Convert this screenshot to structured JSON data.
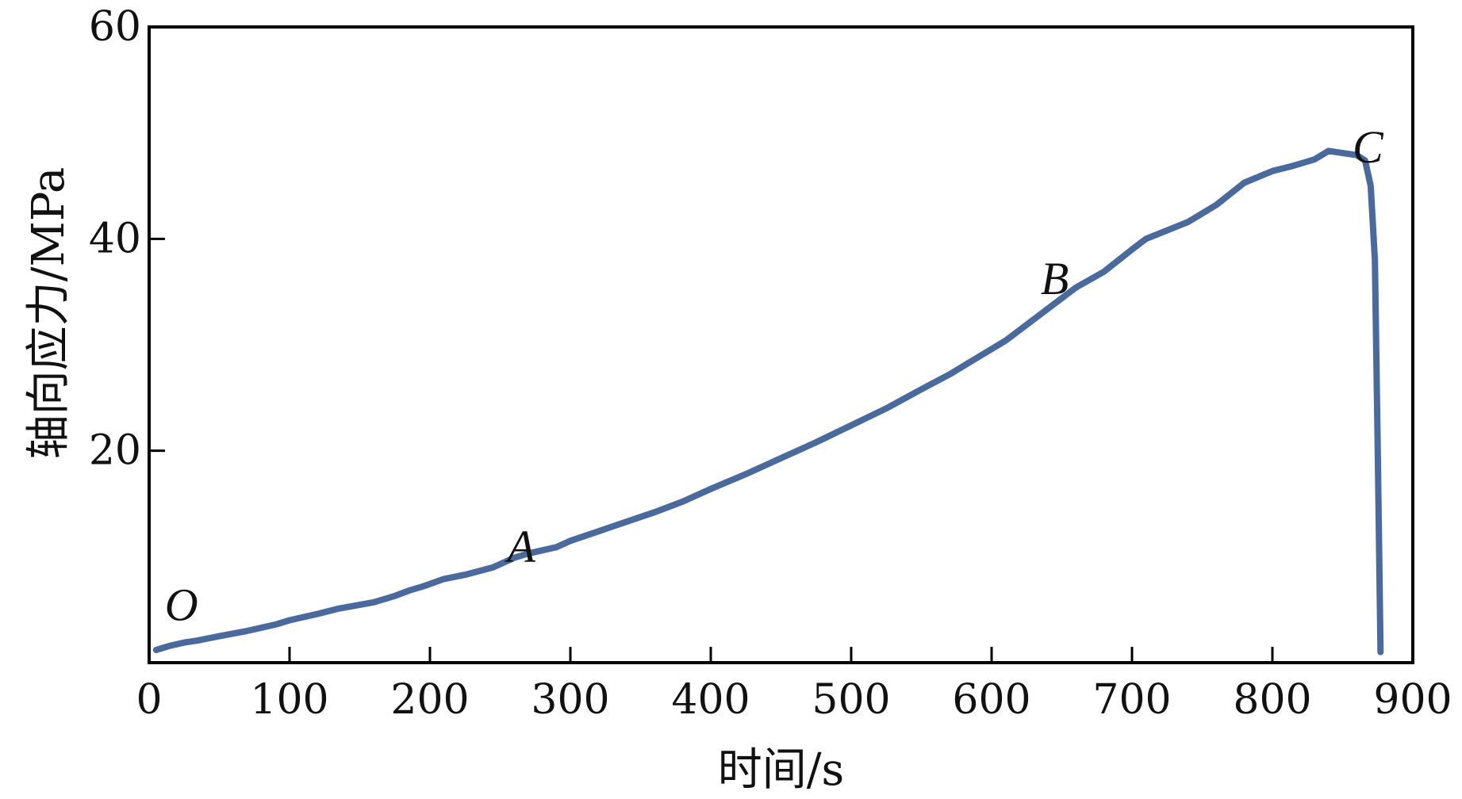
{
  "chart_data": {
    "type": "line",
    "title": "",
    "xlabel": "时间/s",
    "ylabel": "轴向应力/MPa",
    "xlim": [
      0,
      900
    ],
    "ylim": [
      0,
      60
    ],
    "xticks": [
      0,
      100,
      200,
      300,
      400,
      500,
      600,
      700,
      800,
      900
    ],
    "yticks": [
      20,
      40,
      60
    ],
    "xtick_labels": [
      "0",
      "100",
      "200",
      "300",
      "400",
      "500",
      "600",
      "700",
      "800",
      "900"
    ],
    "ytick_labels": [
      "20",
      "40",
      "60"
    ],
    "grid": false,
    "line_color": "#4a6a9e",
    "series": [
      {
        "x": [
          5,
          15,
          25,
          35,
          50,
          70,
          90,
          100,
          120,
          135,
          160,
          175,
          185,
          195,
          210,
          225,
          245,
          260,
          270,
          290,
          300,
          320,
          340,
          360,
          380,
          400,
          425,
          450,
          475,
          500,
          525,
          550,
          570,
          590,
          610,
          640,
          660,
          680,
          700,
          710,
          740,
          760,
          780,
          800,
          815,
          830,
          840,
          850,
          860,
          866,
          870,
          873,
          875,
          877
        ],
        "y": [
          1.2,
          1.6,
          1.9,
          2.1,
          2.5,
          3.0,
          3.6,
          4.0,
          4.6,
          5.1,
          5.7,
          6.3,
          6.8,
          7.2,
          7.9,
          8.3,
          9.0,
          9.9,
          10.3,
          10.9,
          11.5,
          12.4,
          13.3,
          14.2,
          15.2,
          16.4,
          17.8,
          19.3,
          20.8,
          22.4,
          24.0,
          25.8,
          27.2,
          28.8,
          30.4,
          33.4,
          35.4,
          36.9,
          39.0,
          40.0,
          41.6,
          43.2,
          45.3,
          46.4,
          46.9,
          47.5,
          48.3,
          48.1,
          47.9,
          47.4,
          45.0,
          38.0,
          20.0,
          1.0
        ]
      }
    ],
    "annotations": [
      {
        "label": "O",
        "x": 23,
        "y": 4.0
      },
      {
        "label": "A",
        "x": 265,
        "y": 9.5
      },
      {
        "label": "B",
        "x": 645,
        "y": 34.8
      },
      {
        "label": "C",
        "x": 868,
        "y": 47.2
      }
    ]
  }
}
